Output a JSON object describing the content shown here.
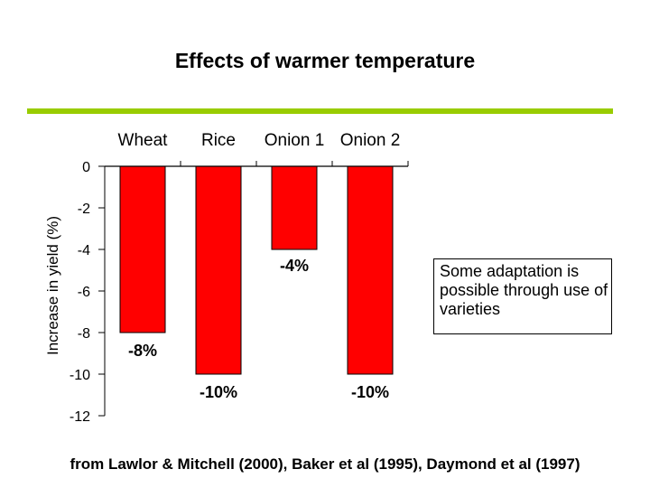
{
  "page": {
    "title": "Effects of warmer temperature",
    "accent_color": "#99cc00",
    "note": "Some adaptation is possible through use of varieties",
    "source": "from Lawlor & Mitchell (2000), Baker et al (1995), Daymond et al (1997)"
  },
  "chart_data": {
    "type": "bar",
    "title": "Effects of warmer temperature",
    "categories": [
      "Wheat",
      "Rice",
      "Onion 1",
      "Onion 2"
    ],
    "values": [
      -8,
      -10,
      -4,
      -10
    ],
    "data_labels": [
      "-8%",
      "-10%",
      "-4%",
      "-10%"
    ],
    "ylabel": "Increase in yield (%)",
    "xlabel": "",
    "ylim": [
      -12,
      0
    ],
    "yticks": [
      0,
      -2,
      -4,
      -6,
      -8,
      -10,
      -12
    ],
    "bar_color": "#ff0000",
    "category_axis_position": "top",
    "grid": false
  }
}
